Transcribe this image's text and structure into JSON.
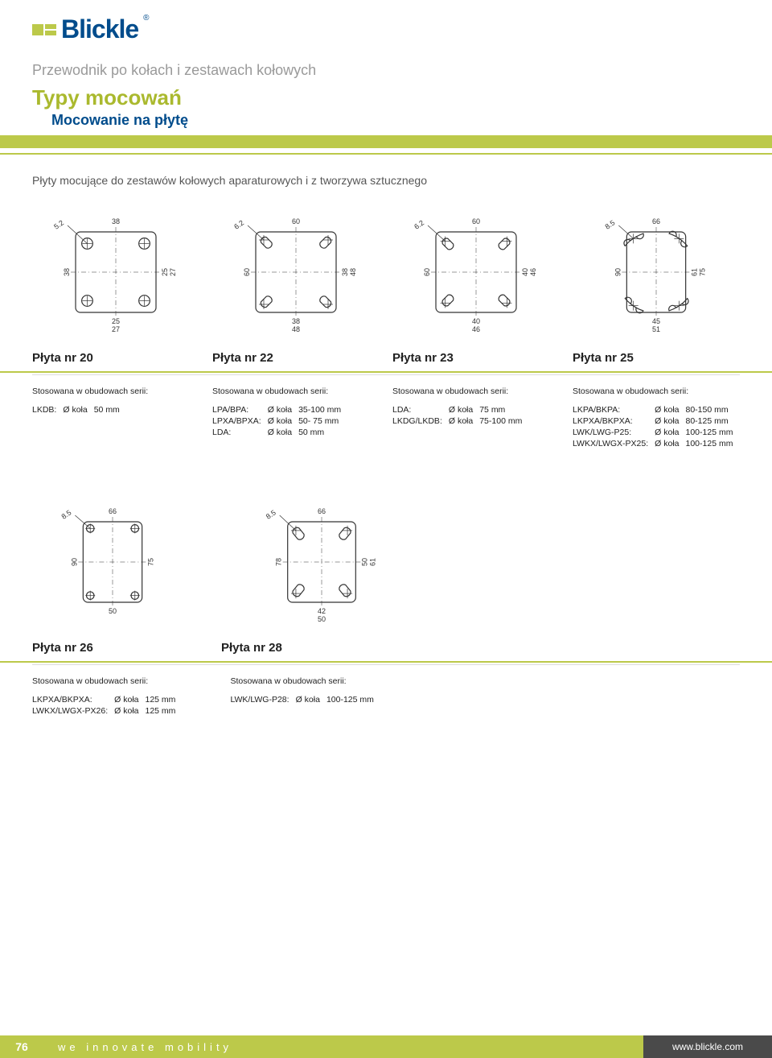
{
  "brand": "Blickle",
  "breadcrumb": "Przewodnik po kołach i zestawach kołowych",
  "title": "Typy mocowań",
  "subtitle": "Mocowanie na płytę",
  "section_label": "Płyty mocujące do zestawów kołowych aparaturowych i z tworzywa sztucznego",
  "used_in_label": "Stosowana w obudowach serii:",
  "wheel_diam_label": "Ø koła",
  "colors": {
    "accent": "#bcc94a",
    "brand_blue": "#004c8c",
    "text": "#333333",
    "muted": "#9a9a9a",
    "footer_dark": "#4a4a4a"
  },
  "top_plates": [
    {
      "name": "Płyta nr 20",
      "type": "plate-square",
      "outer_w": 38,
      "outer_h": 38,
      "bolt_w": 27,
      "bolt_h": 27,
      "bolt_w_min": 25,
      "bolt_h_min": 25,
      "hole_d": 5.2,
      "hole_style": "round",
      "series": [
        {
          "name": "LKDB:",
          "range": "50 mm"
        }
      ]
    },
    {
      "name": "Płyta nr 22",
      "type": "plate-square",
      "outer_w": 60,
      "outer_h": 60,
      "bolt_w": 48,
      "bolt_h": 48,
      "bolt_w_min": 38,
      "bolt_h_min": 38,
      "hole_d": 6.2,
      "hole_style": "slot-diag",
      "series": [
        {
          "name": "LPA/BPA:",
          "range": "35-100 mm"
        },
        {
          "name": "LPXA/BPXA:",
          "range": "50- 75 mm"
        },
        {
          "name": "LDA:",
          "range": "50 mm"
        }
      ]
    },
    {
      "name": "Płyta nr 23",
      "type": "plate-square",
      "outer_w": 60,
      "outer_h": 60,
      "bolt_w": 46,
      "bolt_h": 46,
      "bolt_w_min": 40,
      "bolt_h_min": 40,
      "hole_d": 6.2,
      "hole_style": "slot-diag",
      "series": [
        {
          "name": "LDA:",
          "range": "75 mm"
        },
        {
          "name": "LKDG/LKDB:",
          "range": "75-100 mm"
        }
      ]
    },
    {
      "name": "Płyta nr 25",
      "type": "plate-rect",
      "outer_w": 66,
      "outer_h": 90,
      "bolt_w": 51,
      "bolt_h": 75,
      "bolt_w_min": 45,
      "bolt_h_min": 61,
      "hole_d": 8.5,
      "hole_style": "slot-curve",
      "series": [
        {
          "name": "LKPA/BKPA:",
          "range": "80-150 mm"
        },
        {
          "name": "LKPXA/BKPXA:",
          "range": "80-125 mm"
        },
        {
          "name": "LWK/LWG-P25:",
          "range": "100-125 mm"
        },
        {
          "name": "LWKX/LWGX-PX25:",
          "range": "100-125 mm"
        }
      ]
    }
  ],
  "bottom_plates": [
    {
      "name": "Płyta nr 26",
      "type": "plate-rect",
      "outer_w": 66,
      "outer_h": 90,
      "bolt_w": 50,
      "bolt_h": 75,
      "hole_d": 8.5,
      "hole_style": "round",
      "series": [
        {
          "name": "LKPXA/BKPXA:",
          "range": "125 mm"
        },
        {
          "name": "LWKX/LWGX-PX26:",
          "range": "125 mm"
        }
      ]
    },
    {
      "name": "Płyta nr 28",
      "type": "plate-rect",
      "outer_w": 66,
      "outer_h": 78,
      "bolt_w": 50,
      "bolt_h": 61,
      "bolt_w_min": 42,
      "bolt_h_min": 50,
      "hole_d": 8.5,
      "hole_style": "slot-diag",
      "series": [
        {
          "name": "LWK/LWG-P28:",
          "range": "100-125 mm"
        }
      ]
    }
  ],
  "footer": {
    "page": "76",
    "slogan": "we innovate mobility",
    "site": "www.blickle.com"
  }
}
